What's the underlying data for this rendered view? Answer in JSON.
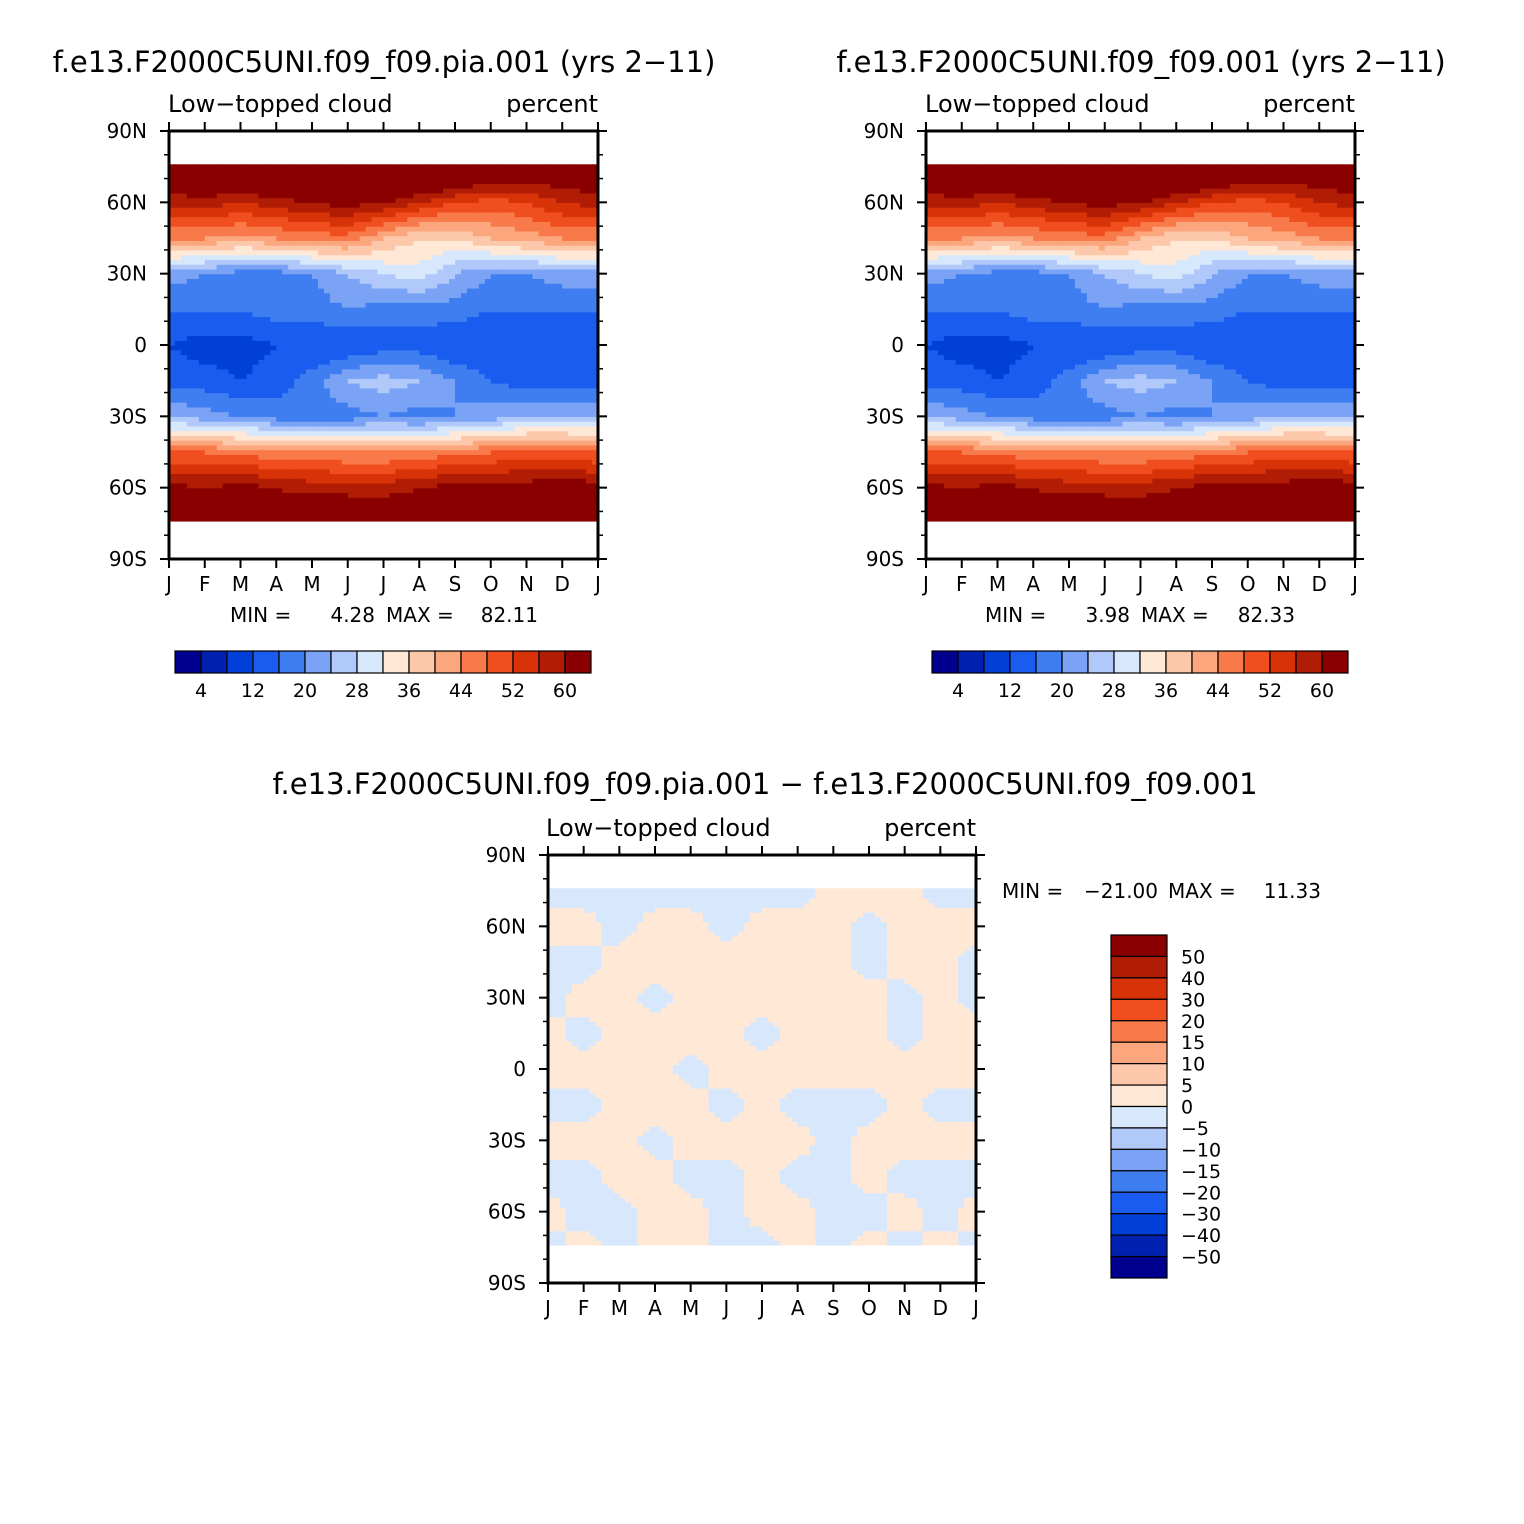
{
  "colormaps": {
    "blue_to_red_16": [
      "#00008f",
      "#0020b0",
      "#0040d8",
      "#1a5cf0",
      "#3f7ef0",
      "#7aa2f5",
      "#b0c8fa",
      "#d8e8fc",
      "#ffe8d6",
      "#fdc8aa",
      "#fca67e",
      "#f87a4a",
      "#f04e1e",
      "#d83208",
      "#b01c04",
      "#8a0000"
    ],
    "diff_16": [
      "#00008f",
      "#0020b0",
      "#0040d8",
      "#1a5cf0",
      "#3f7ef0",
      "#7aa2f5",
      "#b0c8fa",
      "#d8e8fc",
      "#ffe8d6",
      "#fdc8aa",
      "#fca67e",
      "#f87a4a",
      "#f04e1e",
      "#d83208",
      "#b01c04",
      "#8a0000"
    ]
  },
  "chart_data": [
    {
      "type": "heatmap",
      "id": "panel-pia",
      "title": "f.e13.F2000C5UNI.f09_f09.pia.001 (yrs 2−11)",
      "left_label": "Low−topped cloud",
      "right_label": "percent",
      "x_tick_labels": [
        "J",
        "F",
        "M",
        "A",
        "M",
        "J",
        "J",
        "A",
        "S",
        "O",
        "N",
        "D",
        "J"
      ],
      "y_tick_labels": [
        "90N",
        "60N",
        "30N",
        "0",
        "30S",
        "60S",
        "90S"
      ],
      "xlim": [
        0,
        12
      ],
      "ylim": [
        -90,
        90
      ],
      "stats": {
        "min_label": "MIN =",
        "min": "4.28",
        "max_label": "MAX =",
        "max": "82.11"
      },
      "colorbar": {
        "orientation": "horizontal",
        "levels": [
          0,
          4,
          8,
          12,
          16,
          20,
          24,
          28,
          32,
          36,
          40,
          44,
          48,
          52,
          56,
          60,
          64
        ],
        "tick_labels": [
          "4",
          "12",
          "20",
          "28",
          "36",
          "44",
          "52",
          "60"
        ]
      },
      "lat": [
        -90,
        -75,
        -60,
        -45,
        -30,
        -15,
        0,
        15,
        30,
        45,
        60,
        75,
        90
      ],
      "values_by_lat": [
        [
          null,
          null,
          null,
          null,
          null,
          null,
          null,
          null,
          null,
          null,
          null,
          null,
          null
        ],
        [
          64,
          64,
          66,
          66,
          68,
          68,
          66,
          66,
          64,
          62,
          64,
          66,
          64
        ],
        [
          62,
          60,
          62,
          60,
          58,
          58,
          58,
          60,
          62,
          62,
          62,
          64,
          62
        ],
        [
          48,
          48,
          46,
          46,
          46,
          44,
          44,
          46,
          46,
          48,
          50,
          50,
          48
        ],
        [
          24,
          22,
          20,
          18,
          18,
          18,
          20,
          18,
          20,
          22,
          24,
          24,
          24
        ],
        [
          14,
          14,
          12,
          14,
          18,
          24,
          26,
          24,
          20,
          16,
          14,
          14,
          14
        ],
        [
          12,
          10,
          10,
          12,
          12,
          12,
          14,
          14,
          12,
          12,
          12,
          12,
          12
        ],
        [
          16,
          16,
          16,
          18,
          18,
          20,
          18,
          18,
          18,
          16,
          16,
          16,
          16
        ],
        [
          22,
          20,
          18,
          18,
          20,
          24,
          28,
          30,
          24,
          20,
          20,
          22,
          22
        ],
        [
          44,
          44,
          42,
          44,
          46,
          46,
          40,
          36,
          36,
          40,
          42,
          44,
          44
        ],
        [
          58,
          58,
          56,
          58,
          60,
          62,
          60,
          56,
          52,
          50,
          52,
          56,
          58
        ],
        [
          66,
          70,
          72,
          72,
          74,
          76,
          76,
          74,
          72,
          68,
          66,
          66,
          66
        ],
        [
          null,
          null,
          null,
          null,
          null,
          null,
          null,
          null,
          null,
          null,
          null,
          null,
          null
        ]
      ]
    },
    {
      "type": "heatmap",
      "id": "panel-ctl",
      "title": "f.e13.F2000C5UNI.f09_f09.001 (yrs 2−11)",
      "left_label": "Low−topped cloud",
      "right_label": "percent",
      "x_tick_labels": [
        "J",
        "F",
        "M",
        "A",
        "M",
        "J",
        "J",
        "A",
        "S",
        "O",
        "N",
        "D",
        "J"
      ],
      "y_tick_labels": [
        "90N",
        "60N",
        "30N",
        "0",
        "30S",
        "60S",
        "90S"
      ],
      "xlim": [
        0,
        12
      ],
      "ylim": [
        -90,
        90
      ],
      "stats": {
        "min_label": "MIN =",
        "min": "3.98",
        "max_label": "MAX =",
        "max": "82.33"
      },
      "colorbar": {
        "orientation": "horizontal",
        "levels": [
          0,
          4,
          8,
          12,
          16,
          20,
          24,
          28,
          32,
          36,
          40,
          44,
          48,
          52,
          56,
          60,
          64
        ],
        "tick_labels": [
          "4",
          "12",
          "20",
          "28",
          "36",
          "44",
          "52",
          "60"
        ]
      },
      "lat": [
        -90,
        -75,
        -60,
        -45,
        -30,
        -15,
        0,
        15,
        30,
        45,
        60,
        75,
        90
      ],
      "values_by_lat": [
        [
          null,
          null,
          null,
          null,
          null,
          null,
          null,
          null,
          null,
          null,
          null,
          null,
          null
        ],
        [
          64,
          64,
          66,
          66,
          68,
          68,
          66,
          66,
          64,
          62,
          64,
          66,
          64
        ],
        [
          62,
          60,
          62,
          60,
          58,
          58,
          58,
          60,
          62,
          62,
          62,
          64,
          62
        ],
        [
          48,
          48,
          46,
          46,
          46,
          44,
          44,
          46,
          46,
          48,
          50,
          50,
          48
        ],
        [
          24,
          22,
          20,
          18,
          18,
          18,
          20,
          18,
          20,
          22,
          24,
          24,
          24
        ],
        [
          14,
          14,
          12,
          14,
          18,
          24,
          26,
          24,
          20,
          16,
          14,
          14,
          14
        ],
        [
          12,
          10,
          10,
          12,
          12,
          12,
          14,
          14,
          12,
          12,
          12,
          12,
          12
        ],
        [
          16,
          16,
          16,
          18,
          18,
          20,
          18,
          18,
          18,
          16,
          16,
          16,
          16
        ],
        [
          22,
          20,
          18,
          18,
          20,
          24,
          28,
          30,
          24,
          20,
          20,
          22,
          22
        ],
        [
          44,
          44,
          42,
          44,
          46,
          46,
          40,
          36,
          36,
          40,
          42,
          44,
          44
        ],
        [
          58,
          58,
          56,
          58,
          60,
          62,
          60,
          56,
          52,
          50,
          52,
          56,
          58
        ],
        [
          66,
          70,
          72,
          72,
          74,
          76,
          76,
          74,
          72,
          68,
          66,
          66,
          66
        ],
        [
          null,
          null,
          null,
          null,
          null,
          null,
          null,
          null,
          null,
          null,
          null,
          null,
          null
        ]
      ]
    },
    {
      "type": "heatmap",
      "id": "panel-diff",
      "title": "f.e13.F2000C5UNI.f09_f09.pia.001 − f.e13.F2000C5UNI.f09_f09.001",
      "left_label": "Low−topped cloud",
      "right_label": "percent",
      "x_tick_labels": [
        "J",
        "F",
        "M",
        "A",
        "M",
        "J",
        "J",
        "A",
        "S",
        "O",
        "N",
        "D",
        "J"
      ],
      "y_tick_labels": [
        "90N",
        "60N",
        "30N",
        "0",
        "30S",
        "60S",
        "90S"
      ],
      "xlim": [
        0,
        12
      ],
      "ylim": [
        -90,
        90
      ],
      "stats": {
        "min_label": "MIN =",
        "min": "−21.00",
        "max_label": "MAX =",
        "max": "11.33"
      },
      "colorbar": {
        "orientation": "vertical",
        "levels": [
          -60,
          -50,
          -40,
          -30,
          -20,
          -15,
          -10,
          -5,
          0,
          5,
          10,
          15,
          20,
          30,
          40,
          50,
          60
        ],
        "tick_labels": [
          "50",
          "40",
          "30",
          "20",
          "15",
          "10",
          "5",
          "0",
          "−5",
          "−10",
          "−15",
          "−20",
          "−30",
          "−40",
          "−50"
        ]
      },
      "lat": [
        -90,
        -75,
        -60,
        -45,
        -30,
        -15,
        0,
        15,
        30,
        45,
        60,
        75,
        90
      ],
      "values_by_lat": [
        [
          null,
          null,
          null,
          null,
          null,
          null,
          null,
          null,
          null,
          null,
          null,
          null,
          null
        ],
        [
          -1,
          1,
          -1,
          1,
          1,
          -1,
          -1,
          1,
          -1,
          1,
          -1,
          1,
          -1
        ],
        [
          1,
          -1,
          -1,
          1,
          1,
          -1,
          1,
          1,
          -1,
          -1,
          1,
          -1,
          1
        ],
        [
          -1,
          -1,
          1,
          1,
          -1,
          -1,
          1,
          -1,
          -1,
          1,
          -1,
          -1,
          -1
        ],
        [
          1,
          1,
          1,
          -1,
          1,
          1,
          1,
          1,
          -1,
          1,
          1,
          1,
          1
        ],
        [
          -1,
          -1,
          1,
          1,
          1,
          -1,
          1,
          -1,
          -1,
          -1,
          1,
          -1,
          -1
        ],
        [
          1,
          1,
          1,
          1,
          -1,
          1,
          1,
          1,
          1,
          1,
          1,
          1,
          1
        ],
        [
          1,
          -1,
          1,
          1,
          1,
          1,
          -1,
          1,
          1,
          1,
          -1,
          1,
          1
        ],
        [
          -1,
          1,
          1,
          -1,
          1,
          1,
          1,
          1,
          1,
          1,
          -1,
          1,
          -1
        ],
        [
          -1,
          -1,
          1,
          1,
          1,
          1,
          1,
          1,
          1,
          -1,
          1,
          1,
          -1
        ],
        [
          1,
          1,
          -1,
          1,
          1,
          -1,
          1,
          1,
          1,
          -1,
          1,
          1,
          1
        ],
        [
          -1,
          -1,
          -1,
          -1,
          -1,
          -1,
          -1,
          -1,
          1,
          1,
          1,
          -1,
          -1
        ],
        [
          null,
          null,
          null,
          null,
          null,
          null,
          null,
          null,
          null,
          null,
          null,
          null,
          null
        ]
      ]
    }
  ]
}
